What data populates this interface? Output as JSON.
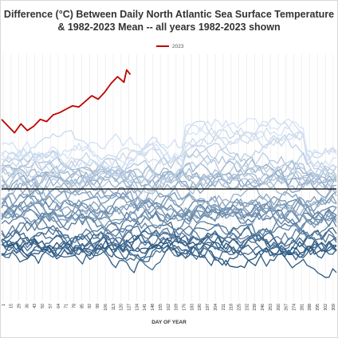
{
  "chart_data": {
    "type": "line",
    "title_line1": "Difference (°C) Between Daily North Atlantic Sea Surface Temperature",
    "title_line2": "& 1982-2023 Mean -- all years 1982-2023 shown",
    "xlabel": "DAY OF YEAR",
    "ylabel": "",
    "xlim": [
      1,
      365
    ],
    "ylim": [
      -1.0,
      1.2
    ],
    "zero_line": 0,
    "grid": "vertical",
    "legend_position": "top-center",
    "x_tick_labels": [
      "1",
      "15",
      "29",
      "36",
      "43",
      "50",
      "57",
      "64",
      "71",
      "78",
      "85",
      "92",
      "99",
      "106",
      "113",
      "120",
      "127",
      "134",
      "141",
      "148",
      "155",
      "162",
      "169",
      "176",
      "183",
      "190",
      "197",
      "204",
      "211",
      "218",
      "225",
      "232",
      "239",
      "246",
      "253",
      "260",
      "267",
      "274",
      "281",
      "288",
      "295",
      "302",
      "309"
    ],
    "highlight_series": {
      "name": "2023",
      "color": "#c00000",
      "x": [
        1,
        8,
        15,
        22,
        29,
        36,
        43,
        50,
        57,
        64,
        71,
        78,
        85,
        92,
        99,
        106,
        113,
        120,
        127,
        134,
        137,
        141
      ],
      "values": [
        0.62,
        0.56,
        0.5,
        0.58,
        0.52,
        0.56,
        0.62,
        0.6,
        0.66,
        0.68,
        0.71,
        0.74,
        0.73,
        0.78,
        0.83,
        0.8,
        0.86,
        0.94,
        1.0,
        0.95,
        1.06,
        1.02
      ]
    },
    "background_series_years": "1982-2022",
    "background_color_range": [
      "#1f4e79",
      "#dce9f7"
    ]
  }
}
